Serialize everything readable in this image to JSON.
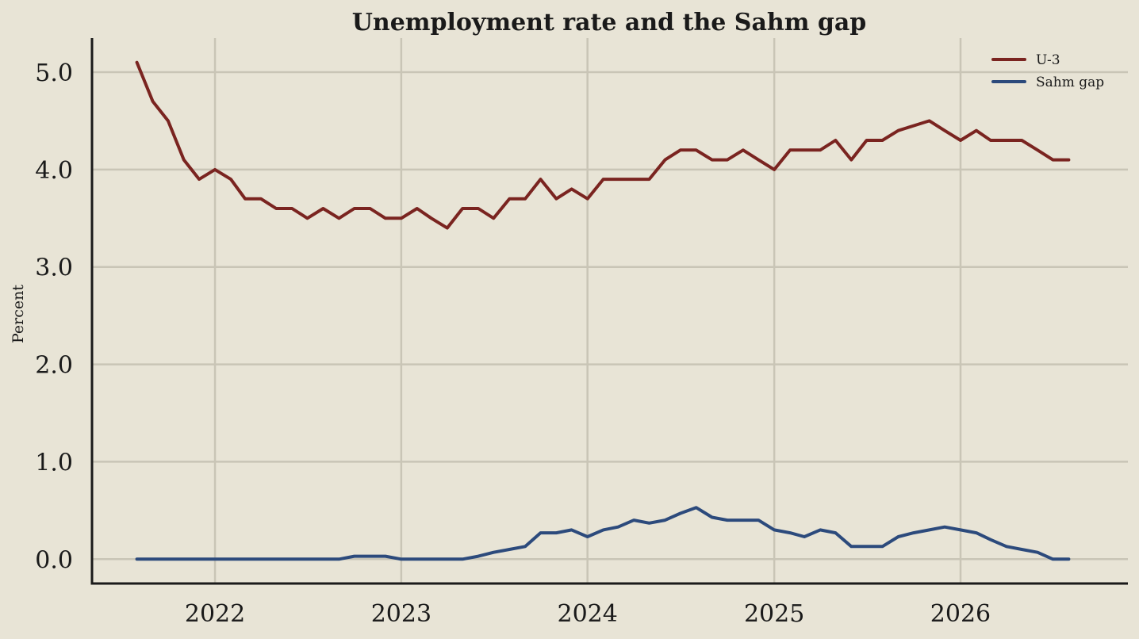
{
  "chart_data": {
    "type": "line",
    "title": "Unemployment rate and the Sahm gap",
    "xlabel": "",
    "ylabel": "Percent",
    "ylim": [
      -0.25,
      5.35
    ],
    "xlim": [
      "2021-05-05",
      "2026-11-25"
    ],
    "yticks": [
      0.0,
      1.0,
      2.0,
      3.0,
      4.0,
      5.0
    ],
    "ytick_labels": [
      "0.0",
      "1.0",
      "2.0",
      "3.0",
      "4.0",
      "5.0"
    ],
    "xticks": [
      "2022-01-01",
      "2023-01-01",
      "2024-01-01",
      "2025-01-01",
      "2026-01-01"
    ],
    "xtick_labels": [
      "2022",
      "2023",
      "2024",
      "2025",
      "2026"
    ],
    "grid": true,
    "legend_position": "top-right",
    "x": [
      "2021-08-01",
      "2021-09-01",
      "2021-10-01",
      "2021-11-01",
      "2021-12-01",
      "2022-01-01",
      "2022-02-01",
      "2022-03-01",
      "2022-04-01",
      "2022-05-01",
      "2022-06-01",
      "2022-07-01",
      "2022-08-01",
      "2022-09-01",
      "2022-10-01",
      "2022-11-01",
      "2022-12-01",
      "2023-01-01",
      "2023-02-01",
      "2023-03-01",
      "2023-04-01",
      "2023-05-01",
      "2023-06-01",
      "2023-07-01",
      "2023-08-01",
      "2023-09-01",
      "2023-10-01",
      "2023-11-01",
      "2023-12-01",
      "2024-01-01",
      "2024-02-01",
      "2024-03-01",
      "2024-04-01",
      "2024-05-01",
      "2024-06-01",
      "2024-07-01",
      "2024-08-01",
      "2024-09-01",
      "2024-10-01",
      "2024-11-01",
      "2024-12-01",
      "2025-01-01",
      "2025-02-01",
      "2025-03-01",
      "2025-04-01",
      "2025-05-01",
      "2025-06-01",
      "2025-07-01",
      "2025-08-01",
      "2025-09-01",
      "2025-10-01",
      "2025-11-01",
      "2025-12-01",
      "2026-01-01",
      "2026-02-01",
      "2026-03-01",
      "2026-04-01",
      "2026-05-01",
      "2026-06-01",
      "2026-07-01",
      "2026-08-01"
    ],
    "series": [
      {
        "name": "U-3",
        "color": "#7a2420",
        "values": [
          5.1,
          4.7,
          4.5,
          4.1,
          3.9,
          4.0,
          3.9,
          3.7,
          3.7,
          3.6,
          3.6,
          3.5,
          3.6,
          3.5,
          3.6,
          3.6,
          3.5,
          3.5,
          3.6,
          3.5,
          3.4,
          3.6,
          3.6,
          3.5,
          3.7,
          3.7,
          3.9,
          3.7,
          3.8,
          3.7,
          3.9,
          3.9,
          3.9,
          3.9,
          4.1,
          4.2,
          4.2,
          4.1,
          4.1,
          4.2,
          4.1,
          4.0,
          4.2,
          4.2,
          4.2,
          4.3,
          4.1,
          4.3,
          4.3,
          4.4,
          4.45,
          4.5,
          4.4,
          4.3,
          4.4,
          4.3,
          4.3,
          4.3,
          4.2,
          4.1,
          4.1
        ]
      },
      {
        "name": "Sahm gap",
        "color": "#2c4a7c",
        "values": [
          0,
          0,
          0,
          0,
          0,
          0,
          0,
          0,
          0,
          0,
          0,
          0,
          0,
          0,
          0.03,
          0.03,
          0.03,
          0,
          0,
          0,
          0,
          0,
          0.03,
          0.07,
          0.1,
          0.13,
          0.27,
          0.27,
          0.3,
          0.23,
          0.3,
          0.33,
          0.4,
          0.37,
          0.4,
          0.47,
          0.53,
          0.43,
          0.4,
          0.4,
          0.4,
          0.3,
          0.27,
          0.23,
          0.3,
          0.27,
          0.13,
          0.13,
          0.13,
          0.23,
          0.27,
          0.3,
          0.33,
          0.3,
          0.27,
          0.2,
          0.13,
          0.1,
          0.07,
          0,
          0
        ]
      }
    ]
  }
}
